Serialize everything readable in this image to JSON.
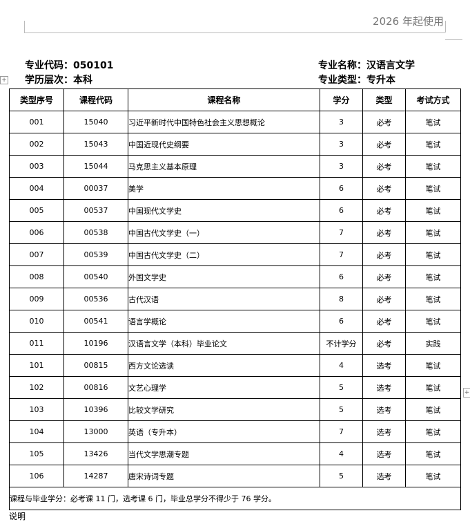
{
  "header": {
    "edition": "2026 年起使用"
  },
  "info": {
    "major_code": "专业代码：050101",
    "level": "学历层次：本科",
    "major_name": "专业名称：汉语言文学",
    "major_type": "专业类型：专升本"
  },
  "table": {
    "columns": [
      "类型序号",
      "课程代码",
      "课程名称",
      "学分",
      "类型",
      "考试方式"
    ],
    "rows": [
      [
        "001",
        "15040",
        "习近平新时代中国特色社会主义思想概论",
        "3",
        "必考",
        "笔试"
      ],
      [
        "002",
        "15043",
        "中国近现代史纲要",
        "3",
        "必考",
        "笔试"
      ],
      [
        "003",
        "15044",
        "马克思主义基本原理",
        "3",
        "必考",
        "笔试"
      ],
      [
        "004",
        "00037",
        "美学",
        "6",
        "必考",
        "笔试"
      ],
      [
        "005",
        "00537",
        "中国现代文学史",
        "6",
        "必考",
        "笔试"
      ],
      [
        "006",
        "00538",
        "中国古代文学史（一）",
        "7",
        "必考",
        "笔试"
      ],
      [
        "007",
        "00539",
        "中国古代文学史（二）",
        "7",
        "必考",
        "笔试"
      ],
      [
        "008",
        "00540",
        "外国文学史",
        "6",
        "必考",
        "笔试"
      ],
      [
        "009",
        "00536",
        "古代汉语",
        "8",
        "必考",
        "笔试"
      ],
      [
        "010",
        "00541",
        "语言学概论",
        "6",
        "必考",
        "笔试"
      ],
      [
        "011",
        "10196",
        "汉语言文学（本科）毕业论文",
        "不计学分",
        "必考",
        "实践"
      ],
      [
        "101",
        "00815",
        "西方文论选读",
        "4",
        "选考",
        "笔试"
      ],
      [
        "102",
        "00816",
        "文艺心理学",
        "5",
        "选考",
        "笔试"
      ],
      [
        "103",
        "10396",
        "比较文学研究",
        "5",
        "选考",
        "笔试"
      ],
      [
        "104",
        "13000",
        "英语（专升本）",
        "7",
        "选考",
        "笔试"
      ],
      [
        "105",
        "13426",
        "当代文学思潮专题",
        "4",
        "选考",
        "笔试"
      ],
      [
        "106",
        "14287",
        "唐宋诗词专题",
        "5",
        "选考",
        "笔试"
      ]
    ],
    "footer": "课程与毕业学分：必考课 11 门，选考课 6 门，毕业总学分不得少于 76 学分。"
  },
  "notes": {
    "title": "说明"
  }
}
